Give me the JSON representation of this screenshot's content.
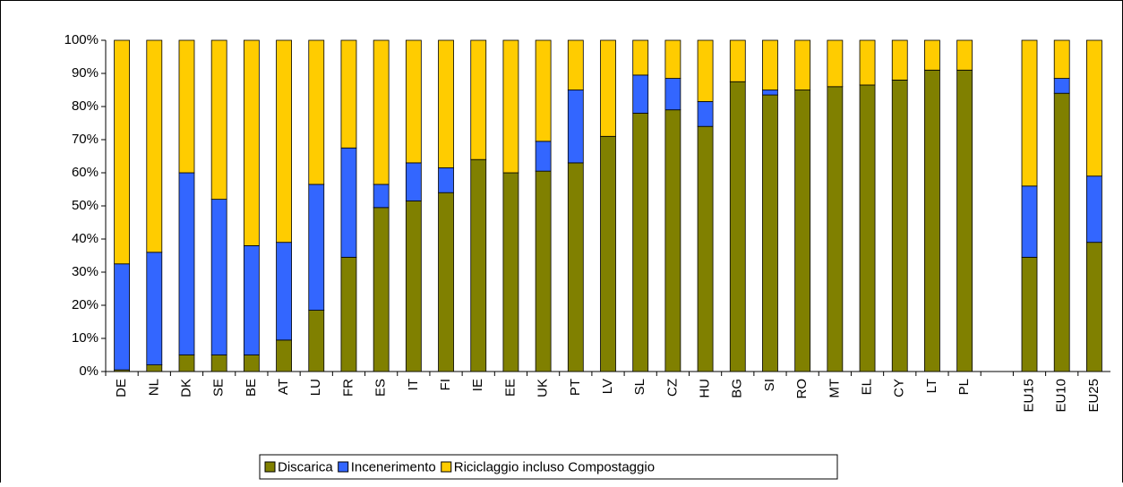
{
  "chart_data": {
    "type": "stacked-bar",
    "categories": [
      "DE",
      "NL",
      "DK",
      "SE",
      "BE",
      "AT",
      "LU",
      "FR",
      "ES",
      "IT",
      "FI",
      "IE",
      "EE",
      "UK",
      "PT",
      "LV",
      "SL",
      "CZ",
      "HU",
      "BG",
      "SI",
      "RO",
      "MT",
      "EL",
      "CY",
      "LT",
      "PL",
      null,
      "EU15",
      "EU10",
      "EU25"
    ],
    "series": [
      {
        "name": "Discarica",
        "color": "#808000",
        "values": [
          0.5,
          2,
          5,
          5,
          5,
          9.5,
          18.5,
          34.5,
          49.5,
          51.5,
          54,
          64,
          60,
          60.5,
          63,
          71,
          78,
          79,
          74,
          87.5,
          83.5,
          85,
          86,
          86.5,
          88,
          91,
          91,
          null,
          34.5,
          84,
          39
        ]
      },
      {
        "name": "Incenerimento",
        "color": "#3366ff",
        "values": [
          32,
          34,
          55,
          47,
          33,
          29.5,
          38,
          33,
          7,
          11.5,
          7.5,
          0,
          0,
          9,
          22,
          0,
          11.5,
          9.5,
          7.5,
          0,
          1.5,
          0,
          0,
          0,
          0,
          0,
          0,
          null,
          21.5,
          4.5,
          20
        ]
      },
      {
        "name": "Riciclaggio incluso Compostaggio",
        "color": "#ffcc00",
        "values": [
          67.5,
          64,
          40,
          48,
          62,
          61,
          43.5,
          32.5,
          43.5,
          37,
          38.5,
          36,
          40,
          30.5,
          15,
          29,
          10.5,
          11.5,
          18.5,
          12.5,
          15,
          15,
          14,
          13.5,
          12,
          9,
          9,
          null,
          44,
          11.5,
          41
        ]
      }
    ],
    "ylim": [
      0,
      100
    ],
    "yticks": [
      {
        "value": 0,
        "label": "0%"
      },
      {
        "value": 10,
        "label": "10%"
      },
      {
        "value": 20,
        "label": "20%"
      },
      {
        "value": 30,
        "label": "30%"
      },
      {
        "value": 40,
        "label": "40%"
      },
      {
        "value": 50,
        "label": "50%"
      },
      {
        "value": 60,
        "label": "60%"
      },
      {
        "value": 70,
        "label": "70%"
      },
      {
        "value": 80,
        "label": "80%"
      },
      {
        "value": 90,
        "label": "90%"
      },
      {
        "value": 100,
        "label": "100%"
      }
    ]
  }
}
